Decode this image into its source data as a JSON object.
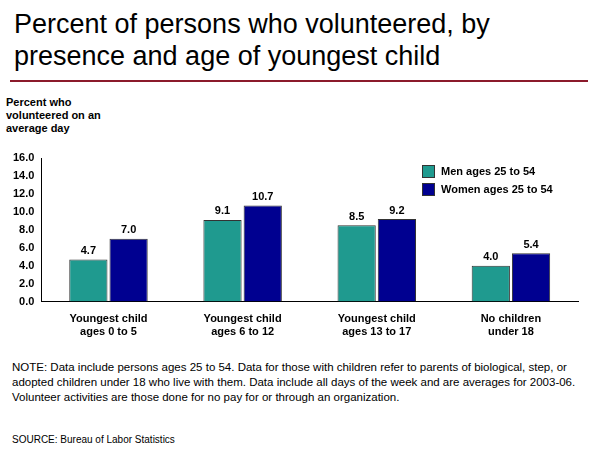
{
  "chart_data": {
    "type": "bar",
    "title": "Percent of persons who volunteered, by presence and age of youngest child",
    "ylabel": "Percent who volunteered on an average day",
    "categories": [
      "Youngest child ages 0 to 5",
      "Youngest child ages 6 to 12",
      "Youngest child ages 13 to 17",
      "No children under 18"
    ],
    "series": [
      {
        "name": "Men ages 25 to 54",
        "color": "#1f9a8f",
        "values": [
          4.7,
          9.1,
          8.5,
          4.0
        ],
        "value_labels": [
          "4.7",
          "9.1",
          "8.5",
          "4.0"
        ]
      },
      {
        "name": "Women ages 25 to 54",
        "color": "#000090",
        "values": [
          7.0,
          10.7,
          9.2,
          5.4
        ],
        "value_labels": [
          "7.0",
          "10.7",
          "9.2",
          "5.4"
        ]
      }
    ],
    "ylim": [
      0,
      16
    ],
    "yticks": [
      {
        "value": 0,
        "label": "0.0"
      },
      {
        "value": 2,
        "label": "2.0"
      },
      {
        "value": 4,
        "label": "4.0"
      },
      {
        "value": 6,
        "label": "6.0"
      },
      {
        "value": 8,
        "label": "8.0"
      },
      {
        "value": 10,
        "label": "10.0"
      },
      {
        "value": 12,
        "label": "12.0"
      },
      {
        "value": 14,
        "label": "14.0"
      },
      {
        "value": 16,
        "label": "16.0"
      }
    ],
    "grid": false,
    "legend": "top-right",
    "data_labels": true,
    "note": "NOTE: Data include persons ages 25 to 54. Data for those with children refer to parents of biological, step, or adopted children under 18 who live with them. Data include all days of the week and are averages for 2003-06. Volunteer activities are those done for no pay for or through an organization.",
    "source": "SOURCE: Bureau of Labor Statistics"
  }
}
